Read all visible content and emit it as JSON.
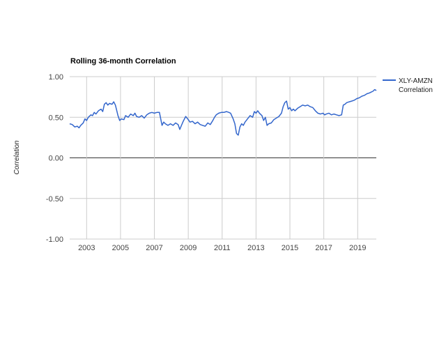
{
  "chart_data": {
    "type": "line",
    "title": "Rolling 36-month Correlation",
    "xlabel": "",
    "ylabel": "Correlation",
    "ylim": [
      -1.0,
      1.0
    ],
    "xlim": [
      2002.0,
      2020.1
    ],
    "yticks": [
      "1.00",
      "0.50",
      "0.00",
      "-0.50",
      "-1.00"
    ],
    "ytick_values": [
      1.0,
      0.5,
      0.0,
      -0.5,
      -1.0
    ],
    "xticks": [
      "2003",
      "2005",
      "2007",
      "2009",
      "2011",
      "2013",
      "2015",
      "2017",
      "2019"
    ],
    "xtick_values": [
      2003,
      2005,
      2007,
      2009,
      2011,
      2013,
      2015,
      2017,
      2019
    ],
    "grid": true,
    "legend_position": "right",
    "series": [
      {
        "name": "XLY-AMZN Correlation",
        "legend_lines": [
          "XLY-AMZN",
          "Correlation"
        ],
        "color": "#3366cc",
        "x": [
          2002.0,
          2002.15,
          2002.3,
          2002.45,
          2002.55,
          2002.65,
          2002.8,
          2002.9,
          2003.0,
          2003.1,
          2003.25,
          2003.35,
          2003.45,
          2003.55,
          2003.7,
          2003.85,
          2003.95,
          2004.05,
          2004.15,
          2004.25,
          2004.35,
          2004.5,
          2004.6,
          2004.7,
          2004.78,
          2004.85,
          2004.95,
          2005.05,
          2005.2,
          2005.3,
          2005.45,
          2005.6,
          2005.75,
          2005.85,
          2005.95,
          2006.1,
          2006.25,
          2006.4,
          2006.55,
          2006.7,
          2006.85,
          2007.0,
          2007.15,
          2007.3,
          2007.45,
          2007.55,
          2007.65,
          2007.8,
          2007.95,
          2008.1,
          2008.25,
          2008.4,
          2008.5,
          2008.6,
          2008.7,
          2008.85,
          2009.0,
          2009.1,
          2009.25,
          2009.4,
          2009.55,
          2009.7,
          2009.85,
          2010.0,
          2010.15,
          2010.3,
          2010.45,
          2010.55,
          2010.65,
          2010.8,
          2010.95,
          2011.1,
          2011.25,
          2011.4,
          2011.5,
          2011.65,
          2011.75,
          2011.85,
          2011.95,
          2012.05,
          2012.15,
          2012.25,
          2012.35,
          2012.5,
          2012.65,
          2012.8,
          2012.9,
          2013.0,
          2013.1,
          2013.2,
          2013.35,
          2013.45,
          2013.55,
          2013.65,
          2013.75,
          2013.9,
          2014.05,
          2014.2,
          2014.35,
          2014.5,
          2014.6,
          2014.7,
          2014.8,
          2014.9,
          2015.0,
          2015.1,
          2015.2,
          2015.3,
          2015.45,
          2015.6,
          2015.75,
          2015.9,
          2016.05,
          2016.2,
          2016.35,
          2016.5,
          2016.65,
          2016.8,
          2016.95,
          2017.05,
          2017.15,
          2017.3,
          2017.45,
          2017.6,
          2017.75,
          2017.9,
          2018.05,
          2018.15,
          2018.25,
          2018.35,
          2018.5,
          2018.65,
          2018.8,
          2018.95,
          2019.1,
          2019.25,
          2019.4,
          2019.55,
          2019.7,
          2019.8,
          2019.9,
          2020.0,
          2020.1
        ],
        "values": [
          0.42,
          0.41,
          0.38,
          0.39,
          0.37,
          0.4,
          0.43,
          0.48,
          0.46,
          0.5,
          0.53,
          0.52,
          0.56,
          0.54,
          0.58,
          0.6,
          0.57,
          0.66,
          0.68,
          0.65,
          0.67,
          0.66,
          0.69,
          0.65,
          0.58,
          0.52,
          0.46,
          0.48,
          0.47,
          0.52,
          0.5,
          0.54,
          0.52,
          0.55,
          0.51,
          0.5,
          0.52,
          0.49,
          0.53,
          0.55,
          0.56,
          0.55,
          0.56,
          0.56,
          0.4,
          0.44,
          0.42,
          0.4,
          0.42,
          0.4,
          0.43,
          0.41,
          0.35,
          0.4,
          0.45,
          0.51,
          0.47,
          0.44,
          0.45,
          0.42,
          0.44,
          0.41,
          0.4,
          0.39,
          0.43,
          0.41,
          0.46,
          0.5,
          0.53,
          0.55,
          0.56,
          0.56,
          0.57,
          0.56,
          0.55,
          0.48,
          0.42,
          0.3,
          0.28,
          0.38,
          0.42,
          0.4,
          0.44,
          0.48,
          0.52,
          0.5,
          0.57,
          0.55,
          0.58,
          0.55,
          0.52,
          0.46,
          0.5,
          0.4,
          0.42,
          0.43,
          0.47,
          0.49,
          0.51,
          0.55,
          0.63,
          0.68,
          0.7,
          0.6,
          0.62,
          0.58,
          0.6,
          0.58,
          0.61,
          0.63,
          0.65,
          0.64,
          0.65,
          0.63,
          0.62,
          0.58,
          0.55,
          0.54,
          0.55,
          0.53,
          0.54,
          0.55,
          0.53,
          0.54,
          0.53,
          0.52,
          0.53,
          0.65,
          0.66,
          0.68,
          0.69,
          0.7,
          0.71,
          0.73,
          0.74,
          0.76,
          0.77,
          0.79,
          0.8,
          0.81,
          0.82,
          0.84,
          0.83
        ]
      }
    ]
  }
}
